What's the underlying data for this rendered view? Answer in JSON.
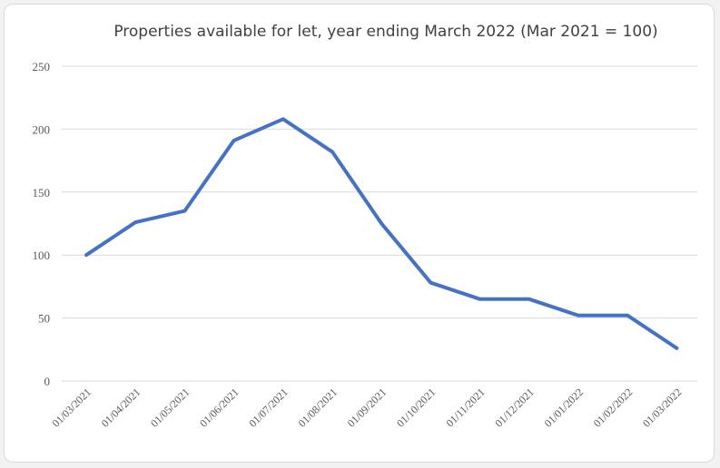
{
  "chart_data": {
    "type": "line",
    "title": "Properties available for let, year ending March 2022 (Mar 2021 = 100)",
    "xlabel": "",
    "ylabel": "",
    "categories": [
      "01/03/2021",
      "01/04/2021",
      "01/05/2021",
      "01/06/2021",
      "01/07/2021",
      "01/08/2021",
      "01/09/2021",
      "01/10/2021",
      "01/11/2021",
      "01/12/2021",
      "01/01/2022",
      "01/02/2022",
      "01/03/2022"
    ],
    "series": [
      {
        "values": [
          100,
          126,
          135,
          191,
          208,
          182,
          125,
          78,
          65,
          65,
          52,
          52,
          26
        ],
        "color": "#4472c4"
      }
    ],
    "ylim": [
      0,
      250
    ],
    "yticks": [
      "0",
      "50",
      "100",
      "150",
      "200",
      "250"
    ],
    "grid": true,
    "legend": "none"
  }
}
